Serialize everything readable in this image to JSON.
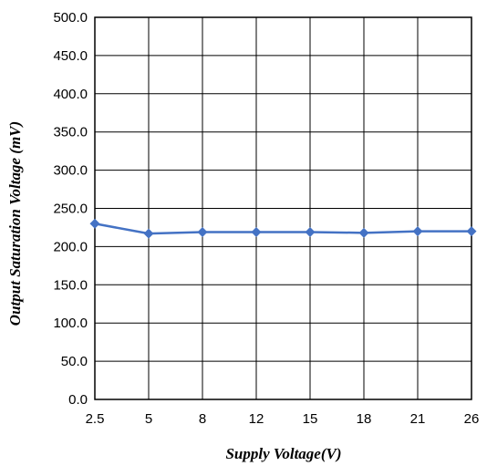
{
  "chart_data": {
    "type": "line",
    "title": "",
    "xlabel": "Supply Voltage(V)",
    "ylabel": "Output Saturation Voltage (mV)",
    "categories": [
      "2.5",
      "5",
      "8",
      "12",
      "15",
      "18",
      "21",
      "26"
    ],
    "series": [
      {
        "values": [
          230,
          217,
          219,
          219,
          219,
          218,
          220,
          220
        ]
      }
    ],
    "ylim": [
      0,
      500
    ],
    "yticks": [
      "0.0",
      "50.0",
      "100.0",
      "150.0",
      "200.0",
      "250.0",
      "300.0",
      "350.0",
      "400.0",
      "450.0",
      "500.0"
    ],
    "grid": true,
    "legend": "none",
    "colors": {
      "series": "#4472C4",
      "grid": "#000000",
      "axis": "#000000"
    }
  }
}
